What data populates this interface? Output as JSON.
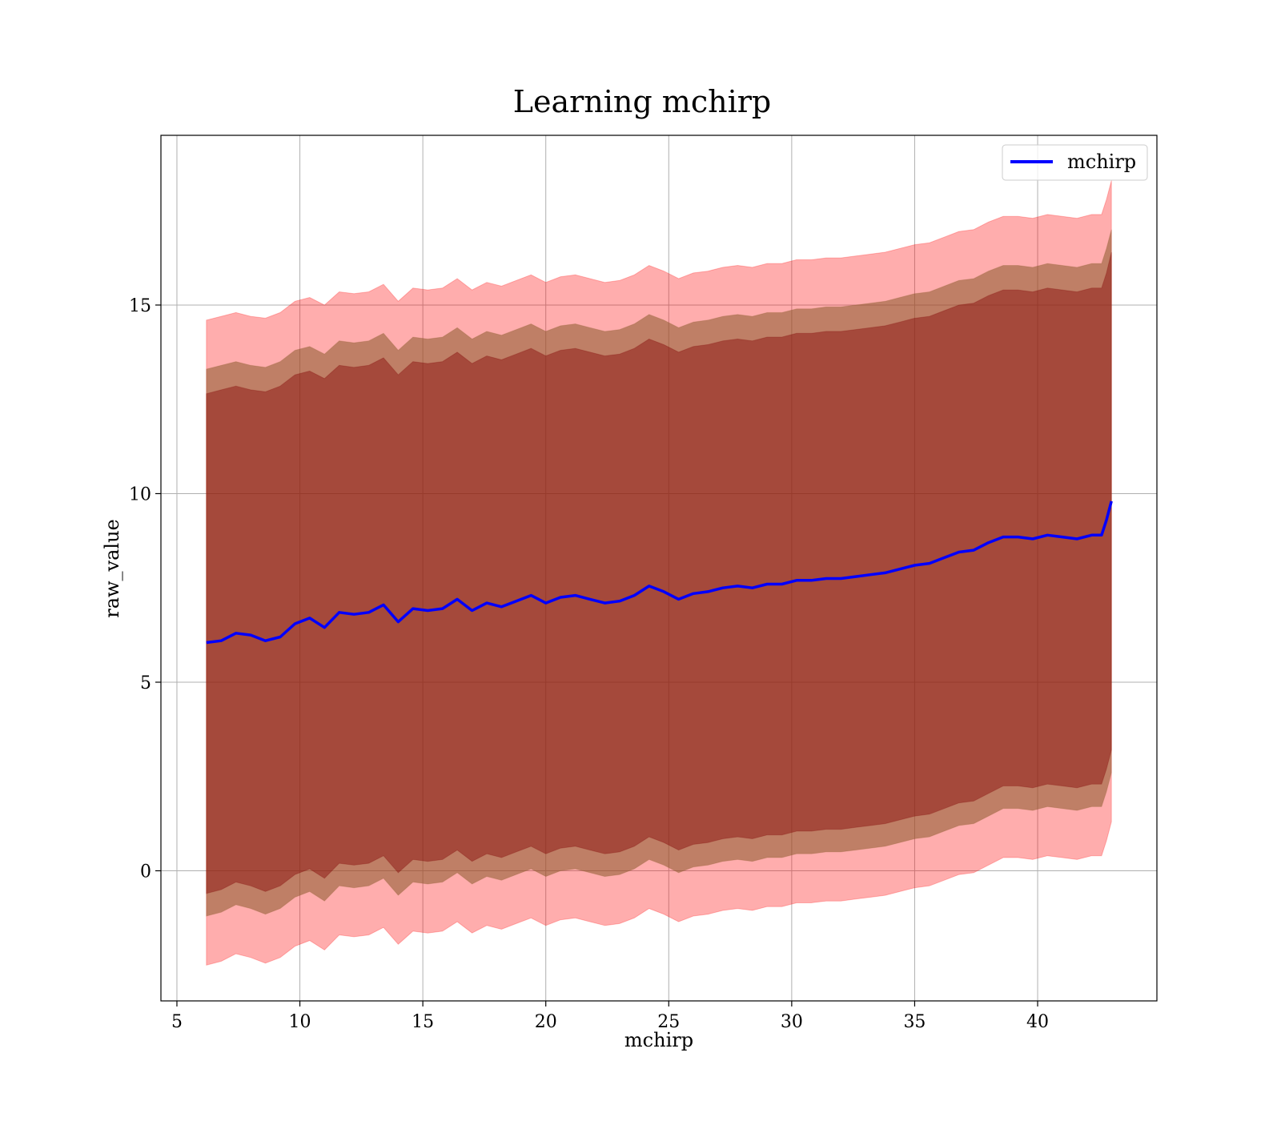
{
  "chart_data": {
    "type": "area",
    "title": "Learning mchirp",
    "xlabel": "mchirp",
    "ylabel": "raw_value",
    "xlim": [
      4.35,
      44.85
    ],
    "ylim": [
      -3.45,
      19.5
    ],
    "xticks": [
      5,
      10,
      15,
      20,
      25,
      30,
      35,
      40
    ],
    "yticks": [
      0,
      5,
      10,
      15
    ],
    "grid": true,
    "legend": {
      "placement": "top-right",
      "entries": [
        "mchirp"
      ]
    },
    "colors": {
      "line": "#0000ff",
      "outer_band": "#ff0000",
      "middle_band": "#8b5a2b",
      "inner_band": "#800000"
    },
    "series": [
      {
        "name": "mchirp",
        "x": [
          6.2,
          6.8,
          7.4,
          8.0,
          8.6,
          9.2,
          9.8,
          10.4,
          11.0,
          11.6,
          12.2,
          12.8,
          13.4,
          14.0,
          14.6,
          15.2,
          15.8,
          16.4,
          17.0,
          17.6,
          18.2,
          18.8,
          19.4,
          20.0,
          20.6,
          21.2,
          21.8,
          22.4,
          23.0,
          23.6,
          24.2,
          24.8,
          25.4,
          26.0,
          26.6,
          27.2,
          27.8,
          28.4,
          29.0,
          29.6,
          30.2,
          30.8,
          31.4,
          32.0,
          32.6,
          33.2,
          33.8,
          34.4,
          35.0,
          35.6,
          36.2,
          36.8,
          37.4,
          38.0,
          38.6,
          39.2,
          39.8,
          40.4,
          41.0,
          41.6,
          42.2,
          42.6,
          42.8,
          43.0
        ],
        "y": [
          6.05,
          6.1,
          6.3,
          6.25,
          6.1,
          6.2,
          6.55,
          6.7,
          6.45,
          6.85,
          6.8,
          6.85,
          7.05,
          6.6,
          6.95,
          6.9,
          6.95,
          7.2,
          6.9,
          7.1,
          7.0,
          7.15,
          7.3,
          7.1,
          7.25,
          7.3,
          7.2,
          7.1,
          7.15,
          7.3,
          7.55,
          7.4,
          7.2,
          7.35,
          7.4,
          7.5,
          7.55,
          7.5,
          7.6,
          7.6,
          7.7,
          7.7,
          7.75,
          7.75,
          7.8,
          7.85,
          7.9,
          8.0,
          8.1,
          8.15,
          8.3,
          8.45,
          8.5,
          8.7,
          8.85,
          8.85,
          8.8,
          8.9,
          8.85,
          8.8,
          8.9,
          8.9,
          9.3,
          9.8
        ]
      }
    ],
    "bands": [
      {
        "level": "outer",
        "upper": [
          14.6,
          14.7,
          14.8,
          14.7,
          14.65,
          14.8,
          15.1,
          15.2,
          15.0,
          15.35,
          15.3,
          15.35,
          15.55,
          15.1,
          15.45,
          15.4,
          15.45,
          15.7,
          15.4,
          15.6,
          15.5,
          15.65,
          15.8,
          15.6,
          15.75,
          15.8,
          15.7,
          15.6,
          15.65,
          15.8,
          16.05,
          15.9,
          15.7,
          15.85,
          15.9,
          16.0,
          16.05,
          16.0,
          16.1,
          16.1,
          16.2,
          16.2,
          16.25,
          16.25,
          16.3,
          16.35,
          16.4,
          16.5,
          16.6,
          16.65,
          16.8,
          16.95,
          17.0,
          17.2,
          17.35,
          17.35,
          17.3,
          17.4,
          17.35,
          17.3,
          17.4,
          17.4,
          17.8,
          18.3
        ],
        "lower": [
          -2.5,
          -2.4,
          -2.2,
          -2.3,
          -2.45,
          -2.3,
          -2.0,
          -1.85,
          -2.1,
          -1.7,
          -1.75,
          -1.7,
          -1.5,
          -1.95,
          -1.6,
          -1.65,
          -1.6,
          -1.35,
          -1.65,
          -1.45,
          -1.55,
          -1.4,
          -1.25,
          -1.45,
          -1.3,
          -1.25,
          -1.35,
          -1.45,
          -1.4,
          -1.25,
          -1.0,
          -1.15,
          -1.35,
          -1.2,
          -1.15,
          -1.05,
          -1.0,
          -1.05,
          -0.95,
          -0.95,
          -0.85,
          -0.85,
          -0.8,
          -0.8,
          -0.75,
          -0.7,
          -0.65,
          -0.55,
          -0.45,
          -0.4,
          -0.25,
          -0.1,
          -0.05,
          0.15,
          0.35,
          0.35,
          0.3,
          0.4,
          0.35,
          0.3,
          0.4,
          0.4,
          0.8,
          1.3
        ]
      },
      {
        "level": "middle",
        "upper": [
          13.3,
          13.4,
          13.5,
          13.4,
          13.35,
          13.5,
          13.8,
          13.9,
          13.7,
          14.05,
          14.0,
          14.05,
          14.25,
          13.8,
          14.15,
          14.1,
          14.15,
          14.4,
          14.1,
          14.3,
          14.2,
          14.35,
          14.5,
          14.3,
          14.45,
          14.5,
          14.4,
          14.3,
          14.35,
          14.5,
          14.75,
          14.6,
          14.4,
          14.55,
          14.6,
          14.7,
          14.75,
          14.7,
          14.8,
          14.8,
          14.9,
          14.9,
          14.95,
          14.95,
          15.0,
          15.05,
          15.1,
          15.2,
          15.3,
          15.35,
          15.5,
          15.65,
          15.7,
          15.9,
          16.05,
          16.05,
          16.0,
          16.1,
          16.05,
          16.0,
          16.1,
          16.1,
          16.5,
          17.0
        ],
        "lower": [
          -1.2,
          -1.1,
          -0.9,
          -1.0,
          -1.15,
          -1.0,
          -0.7,
          -0.55,
          -0.8,
          -0.4,
          -0.45,
          -0.4,
          -0.2,
          -0.65,
          -0.3,
          -0.35,
          -0.3,
          -0.05,
          -0.35,
          -0.15,
          -0.25,
          -0.1,
          0.05,
          -0.15,
          0.0,
          0.05,
          -0.05,
          -0.15,
          -0.1,
          0.05,
          0.3,
          0.15,
          -0.05,
          0.1,
          0.15,
          0.25,
          0.3,
          0.25,
          0.35,
          0.35,
          0.45,
          0.45,
          0.5,
          0.5,
          0.55,
          0.6,
          0.65,
          0.75,
          0.85,
          0.9,
          1.05,
          1.2,
          1.25,
          1.45,
          1.65,
          1.65,
          1.6,
          1.7,
          1.65,
          1.6,
          1.7,
          1.7,
          2.1,
          2.6
        ]
      },
      {
        "level": "inner",
        "upper": [
          12.65,
          12.75,
          12.85,
          12.75,
          12.7,
          12.85,
          13.15,
          13.25,
          13.05,
          13.4,
          13.35,
          13.4,
          13.6,
          13.15,
          13.5,
          13.45,
          13.5,
          13.75,
          13.45,
          13.65,
          13.55,
          13.7,
          13.85,
          13.65,
          13.8,
          13.85,
          13.75,
          13.65,
          13.7,
          13.85,
          14.1,
          13.95,
          13.75,
          13.9,
          13.95,
          14.05,
          14.1,
          14.05,
          14.15,
          14.15,
          14.25,
          14.25,
          14.3,
          14.3,
          14.35,
          14.4,
          14.45,
          14.55,
          14.65,
          14.7,
          14.85,
          15.0,
          15.05,
          15.25,
          15.4,
          15.4,
          15.35,
          15.45,
          15.4,
          15.35,
          15.45,
          15.45,
          15.85,
          16.4
        ],
        "lower": [
          -0.6,
          -0.5,
          -0.3,
          -0.4,
          -0.55,
          -0.4,
          -0.1,
          0.05,
          -0.2,
          0.2,
          0.15,
          0.2,
          0.4,
          -0.05,
          0.3,
          0.25,
          0.3,
          0.55,
          0.25,
          0.45,
          0.35,
          0.5,
          0.65,
          0.45,
          0.6,
          0.65,
          0.55,
          0.45,
          0.5,
          0.65,
          0.9,
          0.75,
          0.55,
          0.7,
          0.75,
          0.85,
          0.9,
          0.85,
          0.95,
          0.95,
          1.05,
          1.05,
          1.1,
          1.1,
          1.15,
          1.2,
          1.25,
          1.35,
          1.45,
          1.5,
          1.65,
          1.8,
          1.85,
          2.05,
          2.25,
          2.25,
          2.2,
          2.3,
          2.25,
          2.2,
          2.3,
          2.3,
          2.7,
          3.2
        ]
      }
    ]
  }
}
